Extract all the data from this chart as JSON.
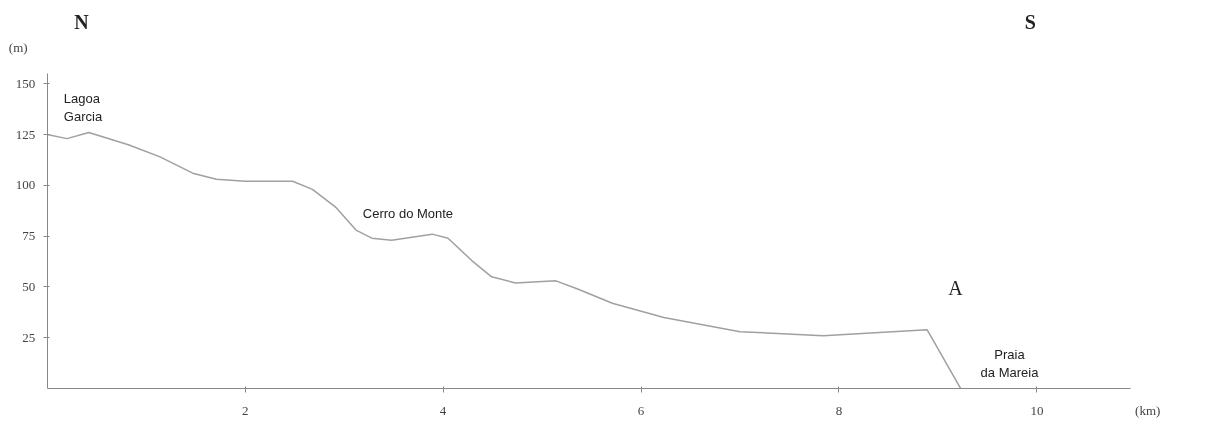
{
  "chart_data": {
    "type": "line",
    "xlabel": "(km)",
    "ylabel": "(m)",
    "x": [
      0,
      0.2,
      0.42,
      0.82,
      1.14,
      1.47,
      1.71,
      2.0,
      2.48,
      2.68,
      2.92,
      3.12,
      3.28,
      3.48,
      3.89,
      4.05,
      4.29,
      4.49,
      4.73,
      5.14,
      5.36,
      5.71,
      6.23,
      7.0,
      7.84,
      8.89,
      9.23
    ],
    "series": [
      {
        "color": "#a0a0a0",
        "values": [
          125,
          123,
          126,
          120,
          114,
          106,
          103,
          102,
          102,
          98,
          89,
          78,
          74,
          73,
          76,
          74,
          63,
          55,
          52,
          53,
          49,
          42,
          35,
          28,
          26,
          29,
          0
        ]
      }
    ],
    "xlim": [
      0,
      10.95
    ],
    "ylim": [
      0,
      155
    ],
    "xticks": [
      2,
      4,
      6,
      8,
      10
    ],
    "yticks": [
      25,
      50,
      75,
      100,
      125,
      150
    ],
    "grid": false,
    "marker": "none",
    "line_style": "solid",
    "annotations": [
      "N",
      "S",
      "Lagoa\nGarcia",
      "Cerro do Monte",
      "A",
      "Praia\nda Mareia"
    ]
  }
}
